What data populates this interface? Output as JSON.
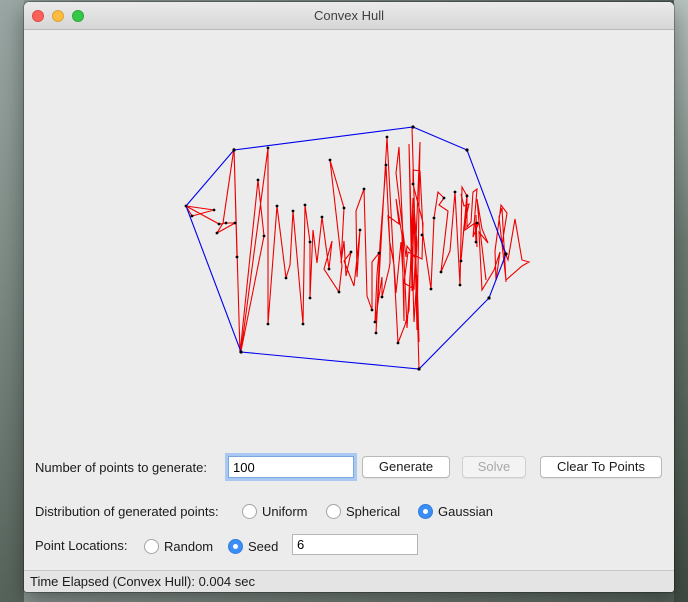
{
  "window": {
    "title": "Convex Hull"
  },
  "controls": {
    "num_points_label": "Number of points to generate:",
    "num_points_value": "100",
    "generate_label": "Generate",
    "solve_label": "Solve",
    "clear_label": "Clear To Points",
    "distribution_label": "Distribution of generated points:",
    "distribution_options": [
      "Uniform",
      "Spherical",
      "Gaussian"
    ],
    "distribution_selected": "Gaussian",
    "locations_label": "Point Locations:",
    "location_options": [
      "Random",
      "Seed"
    ],
    "location_selected": "Seed",
    "seed_value": "6"
  },
  "status": {
    "text": "Time Elapsed (Convex Hull): 0.004 sec"
  },
  "colors": {
    "hull": "#0000ee",
    "path": "#ee0000",
    "point": "#000000",
    "accent": "#3b8ef5"
  }
}
